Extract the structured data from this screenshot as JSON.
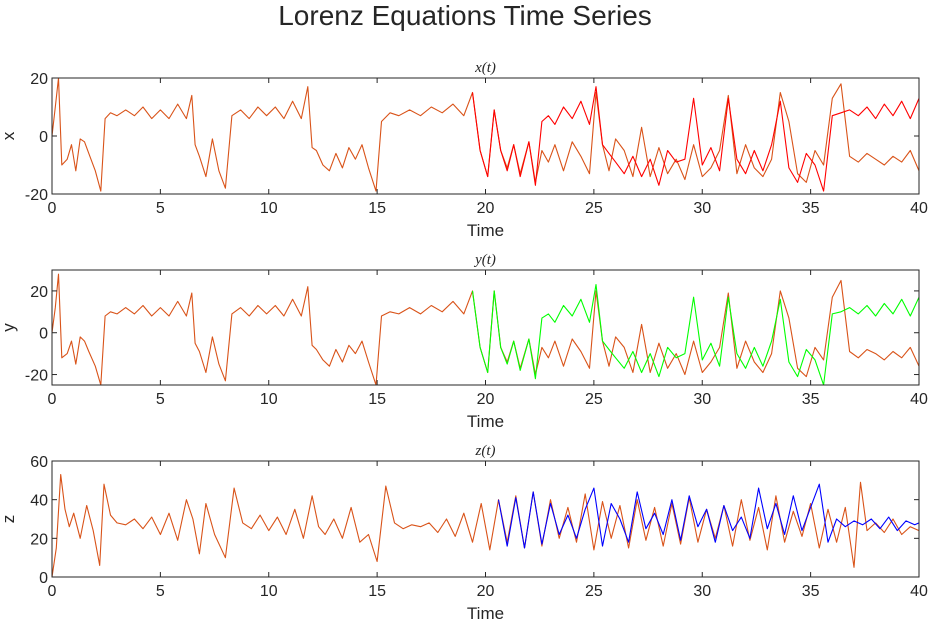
{
  "title": "Lorenz Equations Time Series",
  "colors": {
    "reference": "#d95319",
    "x_perturbed": "#ff0000",
    "y_perturbed": "#00ff00",
    "z_perturbed": "#0000ff",
    "axis": "#262626"
  },
  "chart_data": [
    {
      "type": "line",
      "subplot_title": "x(t)",
      "xlabel": "Time",
      "ylabel": "x",
      "xlim": [
        0,
        40
      ],
      "ylim": [
        -20,
        20
      ],
      "xticks": [
        0,
        5,
        10,
        15,
        20,
        25,
        30,
        35,
        40
      ],
      "yticks": [
        -20,
        0,
        20
      ],
      "grid": false,
      "series": [
        {
          "color": "#d95319",
          "x": [
            0,
            0.15,
            0.3,
            0.45,
            0.7,
            0.9,
            1.1,
            1.3,
            1.5,
            1.7,
            2.0,
            2.25,
            2.45,
            2.7,
            3.0,
            3.4,
            3.8,
            4.2,
            4.6,
            5.0,
            5.4,
            5.8,
            6.2,
            6.45,
            6.6,
            6.8,
            7.1,
            7.4,
            7.7,
            8.0,
            8.3,
            8.7,
            9.1,
            9.5,
            9.9,
            10.3,
            10.7,
            11.1,
            11.5,
            11.8,
            12.0,
            12.2,
            12.5,
            12.8,
            13.1,
            13.4,
            13.7,
            14.0,
            14.3,
            14.6,
            14.95,
            15.2,
            15.6,
            16.0,
            16.5,
            17.0,
            17.5,
            18.0,
            18.5,
            19.0,
            19.4,
            19.75,
            20.1,
            20.4,
            20.7,
            21.0,
            21.3,
            21.6,
            22.0,
            22.3,
            22.6,
            22.9,
            23.2,
            23.6,
            24.0,
            24.4,
            24.8,
            25.1,
            25.4,
            25.7,
            26.0,
            26.4,
            26.8,
            27.2,
            27.6,
            28.0,
            28.4,
            28.8,
            29.2,
            29.6,
            30.0,
            30.4,
            30.8,
            31.2,
            31.6,
            32.0,
            32.4,
            32.8,
            33.2,
            33.6,
            34.0,
            34.4,
            34.8,
            35.2,
            35.6,
            36.0,
            36.4,
            36.8,
            37.2,
            37.6,
            38.0,
            38.4,
            38.8,
            39.2,
            39.6,
            40.0
          ],
          "y": [
            0,
            10,
            20,
            -10,
            -8,
            -3,
            -12,
            -1,
            -2,
            -6,
            -12,
            -19,
            6,
            8,
            7,
            9,
            7,
            10,
            6,
            9,
            6,
            11,
            6,
            14,
            -3,
            -7,
            -14,
            -1,
            -12,
            -18,
            7,
            9,
            6,
            10,
            7,
            10,
            6,
            12,
            6,
            17,
            -4,
            -5,
            -10,
            -12,
            -6,
            -11,
            -4,
            -8,
            -3,
            -11,
            -19,
            5,
            8,
            7,
            9,
            7,
            10,
            8,
            11,
            7,
            15,
            -5,
            -14,
            9,
            -5,
            -11,
            -3,
            -13,
            -2,
            -16,
            -5,
            -9,
            -3,
            -12,
            -2,
            -7,
            -13,
            15,
            -3,
            -12,
            -1,
            -5,
            -14,
            3,
            -14,
            -4,
            -13,
            -8,
            -15,
            -3,
            -14,
            -11,
            -5,
            14,
            -13,
            -3,
            -11,
            -14,
            -8,
            15,
            5,
            -13,
            -16,
            -5,
            -10,
            13,
            18,
            -7,
            -9,
            -6,
            -8,
            -10,
            -7,
            -9,
            -5,
            -12
          ]
        },
        {
          "color": "#ff0000",
          "x": [
            19.4,
            19.75,
            20.1,
            20.4,
            20.7,
            21.0,
            21.3,
            21.6,
            22.0,
            22.3,
            22.6,
            22.9,
            23.2,
            23.6,
            24.0,
            24.4,
            24.8,
            25.1,
            25.4,
            25.7,
            26.0,
            26.4,
            26.8,
            27.2,
            27.6,
            28.0,
            28.4,
            28.8,
            29.2,
            29.6,
            30.0,
            30.4,
            30.8,
            31.2,
            31.6,
            32.0,
            32.4,
            32.8,
            33.2,
            33.6,
            34.0,
            34.4,
            34.8,
            35.2,
            35.6,
            36.0,
            36.4,
            36.8,
            37.2,
            37.6,
            38.0,
            38.4,
            38.8,
            39.2,
            39.6,
            40.0
          ],
          "y": [
            15,
            -5,
            -14,
            9,
            -5,
            -12,
            -3,
            -14,
            -2,
            -17,
            5,
            7,
            4,
            10,
            6,
            12,
            4,
            17,
            -3,
            -6,
            -9,
            -13,
            -7,
            -14,
            -8,
            -17,
            -5,
            -9,
            -8,
            13,
            -10,
            -4,
            -12,
            13,
            -8,
            -13,
            -5,
            -12,
            -3,
            12,
            -11,
            -16,
            -6,
            -10,
            -19,
            7,
            8,
            9,
            7,
            10,
            6,
            11,
            7,
            12,
            6,
            13
          ]
        }
      ]
    },
    {
      "type": "line",
      "subplot_title": "y(t)",
      "xlabel": "Time",
      "ylabel": "y",
      "xlim": [
        0,
        40
      ],
      "ylim": [
        -25,
        30
      ],
      "xticks": [
        0,
        5,
        10,
        15,
        20,
        25,
        30,
        35,
        40
      ],
      "yticks": [
        -20,
        0,
        20
      ],
      "grid": false,
      "series": [
        {
          "color": "#d95319",
          "x": [
            0,
            0.15,
            0.3,
            0.45,
            0.7,
            0.9,
            1.1,
            1.3,
            1.5,
            1.7,
            2.0,
            2.25,
            2.45,
            2.7,
            3.0,
            3.4,
            3.8,
            4.2,
            4.6,
            5.0,
            5.4,
            5.8,
            6.2,
            6.45,
            6.6,
            6.8,
            7.1,
            7.4,
            7.7,
            8.0,
            8.3,
            8.7,
            9.1,
            9.5,
            9.9,
            10.3,
            10.7,
            11.1,
            11.5,
            11.8,
            12.0,
            12.2,
            12.5,
            12.8,
            13.1,
            13.4,
            13.7,
            14.0,
            14.3,
            14.6,
            14.95,
            15.2,
            15.6,
            16.0,
            16.5,
            17.0,
            17.5,
            18.0,
            18.5,
            19.0,
            19.4,
            19.75,
            20.1,
            20.4,
            20.7,
            21.0,
            21.3,
            21.6,
            22.0,
            22.3,
            22.6,
            22.9,
            23.2,
            23.6,
            24.0,
            24.4,
            24.8,
            25.1,
            25.4,
            25.7,
            26.0,
            26.4,
            26.8,
            27.2,
            27.6,
            28.0,
            28.4,
            28.8,
            29.2,
            29.6,
            30.0,
            30.4,
            30.8,
            31.2,
            31.6,
            32.0,
            32.4,
            32.8,
            33.2,
            33.6,
            34.0,
            34.4,
            34.8,
            35.2,
            35.6,
            36.0,
            36.4,
            36.8,
            37.2,
            37.6,
            38.0,
            38.4,
            38.8,
            39.2,
            39.6,
            40.0
          ],
          "y": [
            0,
            12,
            28,
            -12,
            -10,
            -4,
            -15,
            -2,
            -4,
            -9,
            -16,
            -25,
            8,
            10,
            9,
            12,
            9,
            13,
            8,
            12,
            8,
            15,
            8,
            19,
            -5,
            -9,
            -19,
            -2,
            -15,
            -23,
            9,
            12,
            8,
            13,
            9,
            13,
            8,
            16,
            8,
            22,
            -6,
            -8,
            -13,
            -16,
            -8,
            -14,
            -6,
            -10,
            -4,
            -14,
            -25,
            8,
            10,
            9,
            12,
            9,
            13,
            10,
            15,
            9,
            20,
            -7,
            -19,
            20,
            -7,
            -14,
            -4,
            -17,
            -3,
            -20,
            -7,
            -12,
            -4,
            -16,
            -3,
            -9,
            -17,
            20,
            -4,
            -16,
            -2,
            -7,
            -19,
            4,
            -19,
            -5,
            -17,
            -10,
            -20,
            -4,
            -19,
            -14,
            -7,
            19,
            -17,
            -4,
            -14,
            -19,
            -10,
            20,
            7,
            -17,
            -21,
            -7,
            -13,
            17,
            25,
            -9,
            -12,
            -8,
            -10,
            -13,
            -9,
            -12,
            -7,
            -16
          ]
        },
        {
          "color": "#00ff00",
          "x": [
            19.4,
            19.75,
            20.1,
            20.4,
            20.7,
            21.0,
            21.3,
            21.6,
            22.0,
            22.3,
            22.6,
            22.9,
            23.2,
            23.6,
            24.0,
            24.4,
            24.8,
            25.1,
            25.4,
            25.7,
            26.0,
            26.4,
            26.8,
            27.2,
            27.6,
            28.0,
            28.4,
            28.8,
            29.2,
            29.6,
            30.0,
            30.4,
            30.8,
            31.2,
            31.6,
            32.0,
            32.4,
            32.8,
            33.2,
            33.6,
            34.0,
            34.4,
            34.8,
            35.2,
            35.6,
            36.0,
            36.4,
            36.8,
            37.2,
            37.6,
            38.0,
            38.4,
            38.8,
            39.2,
            39.6,
            40.0
          ],
          "y": [
            20,
            -7,
            -19,
            20,
            -7,
            -15,
            -4,
            -18,
            -3,
            -22,
            7,
            9,
            5,
            13,
            8,
            16,
            5,
            23,
            -4,
            -8,
            -12,
            -17,
            -9,
            -19,
            -10,
            -21,
            -7,
            -12,
            -10,
            17,
            -13,
            -5,
            -16,
            17,
            -10,
            -17,
            -7,
            -16,
            -4,
            16,
            -14,
            -21,
            -8,
            -13,
            -25,
            9,
            10,
            12,
            9,
            13,
            8,
            14,
            9,
            16,
            8,
            17
          ]
        }
      ]
    },
    {
      "type": "line",
      "subplot_title": "z(t)",
      "xlabel": "Time",
      "ylabel": "z",
      "xlim": [
        0,
        40
      ],
      "ylim": [
        0,
        60
      ],
      "xticks": [
        0,
        5,
        10,
        15,
        20,
        25,
        30,
        35,
        40
      ],
      "yticks": [
        0,
        20,
        40,
        60
      ],
      "grid": false,
      "series": [
        {
          "color": "#d95319",
          "x": [
            0,
            0.2,
            0.4,
            0.6,
            0.8,
            1.0,
            1.3,
            1.6,
            1.9,
            2.2,
            2.4,
            2.7,
            3.0,
            3.4,
            3.8,
            4.2,
            4.6,
            5.0,
            5.4,
            5.8,
            6.2,
            6.5,
            6.8,
            7.1,
            7.5,
            8.0,
            8.4,
            8.8,
            9.2,
            9.6,
            10.0,
            10.4,
            10.8,
            11.2,
            11.6,
            12.0,
            12.3,
            12.6,
            13.0,
            13.4,
            13.8,
            14.2,
            14.6,
            15.0,
            15.4,
            15.8,
            16.2,
            16.6,
            17.0,
            17.4,
            17.8,
            18.2,
            18.6,
            19.0,
            19.4,
            19.8,
            20.2,
            20.6,
            21.0,
            21.4,
            21.8,
            22.2,
            22.6,
            23.0,
            23.4,
            23.8,
            24.2,
            24.6,
            25.0,
            25.4,
            25.8,
            26.2,
            26.6,
            27.0,
            27.4,
            27.8,
            28.2,
            28.6,
            29.0,
            29.4,
            29.8,
            30.2,
            30.6,
            31.0,
            31.4,
            31.8,
            32.2,
            32.6,
            33.0,
            33.4,
            33.8,
            34.2,
            34.6,
            35.0,
            35.4,
            35.8,
            36.2,
            36.6,
            37.0,
            37.3,
            37.6,
            38.0,
            38.4,
            38.8,
            39.2,
            39.6,
            40.0
          ],
          "y": [
            0,
            15,
            53,
            35,
            26,
            33,
            20,
            37,
            24,
            6,
            48,
            32,
            28,
            27,
            30,
            25,
            31,
            22,
            33,
            19,
            40,
            30,
            12,
            38,
            22,
            10,
            46,
            28,
            25,
            32,
            24,
            31,
            22,
            35,
            20,
            42,
            26,
            22,
            30,
            20,
            36,
            18,
            22,
            8,
            47,
            28,
            25,
            27,
            26,
            28,
            23,
            30,
            21,
            33,
            18,
            38,
            14,
            40,
            18,
            42,
            15,
            44,
            16,
            40,
            20,
            36,
            18,
            43,
            14,
            39,
            20,
            37,
            15,
            40,
            19,
            36,
            16,
            38,
            17,
            41,
            18,
            35,
            20,
            37,
            16,
            40,
            19,
            36,
            14,
            42,
            18,
            34,
            21,
            38,
            15,
            35,
            18,
            36,
            5,
            49,
            24,
            28,
            23,
            30,
            22,
            26,
            24
          ]
        },
        {
          "color": "#0000ff",
          "x": [
            20.6,
            21.0,
            21.4,
            21.8,
            22.2,
            22.6,
            23.0,
            23.4,
            23.8,
            24.2,
            24.6,
            25.0,
            25.4,
            25.8,
            26.2,
            26.6,
            27.0,
            27.4,
            27.8,
            28.2,
            28.6,
            29.0,
            29.4,
            29.8,
            30.2,
            30.6,
            31.0,
            31.4,
            31.8,
            32.2,
            32.6,
            33.0,
            33.4,
            33.8,
            34.2,
            34.6,
            35.0,
            35.4,
            35.8,
            36.2,
            36.6,
            37.0,
            37.4,
            37.8,
            38.2,
            38.6,
            39.0,
            39.4,
            39.8,
            40.0
          ],
          "y": [
            40,
            16,
            41,
            15,
            44,
            17,
            38,
            22,
            32,
            20,
            35,
            46,
            16,
            38,
            30,
            18,
            44,
            25,
            33,
            22,
            40,
            19,
            42,
            26,
            35,
            18,
            37,
            24,
            31,
            20,
            46,
            25,
            38,
            22,
            42,
            24,
            36,
            48,
            18,
            30,
            26,
            29,
            27,
            30,
            25,
            31,
            24,
            29,
            27,
            28
          ]
        }
      ]
    }
  ]
}
